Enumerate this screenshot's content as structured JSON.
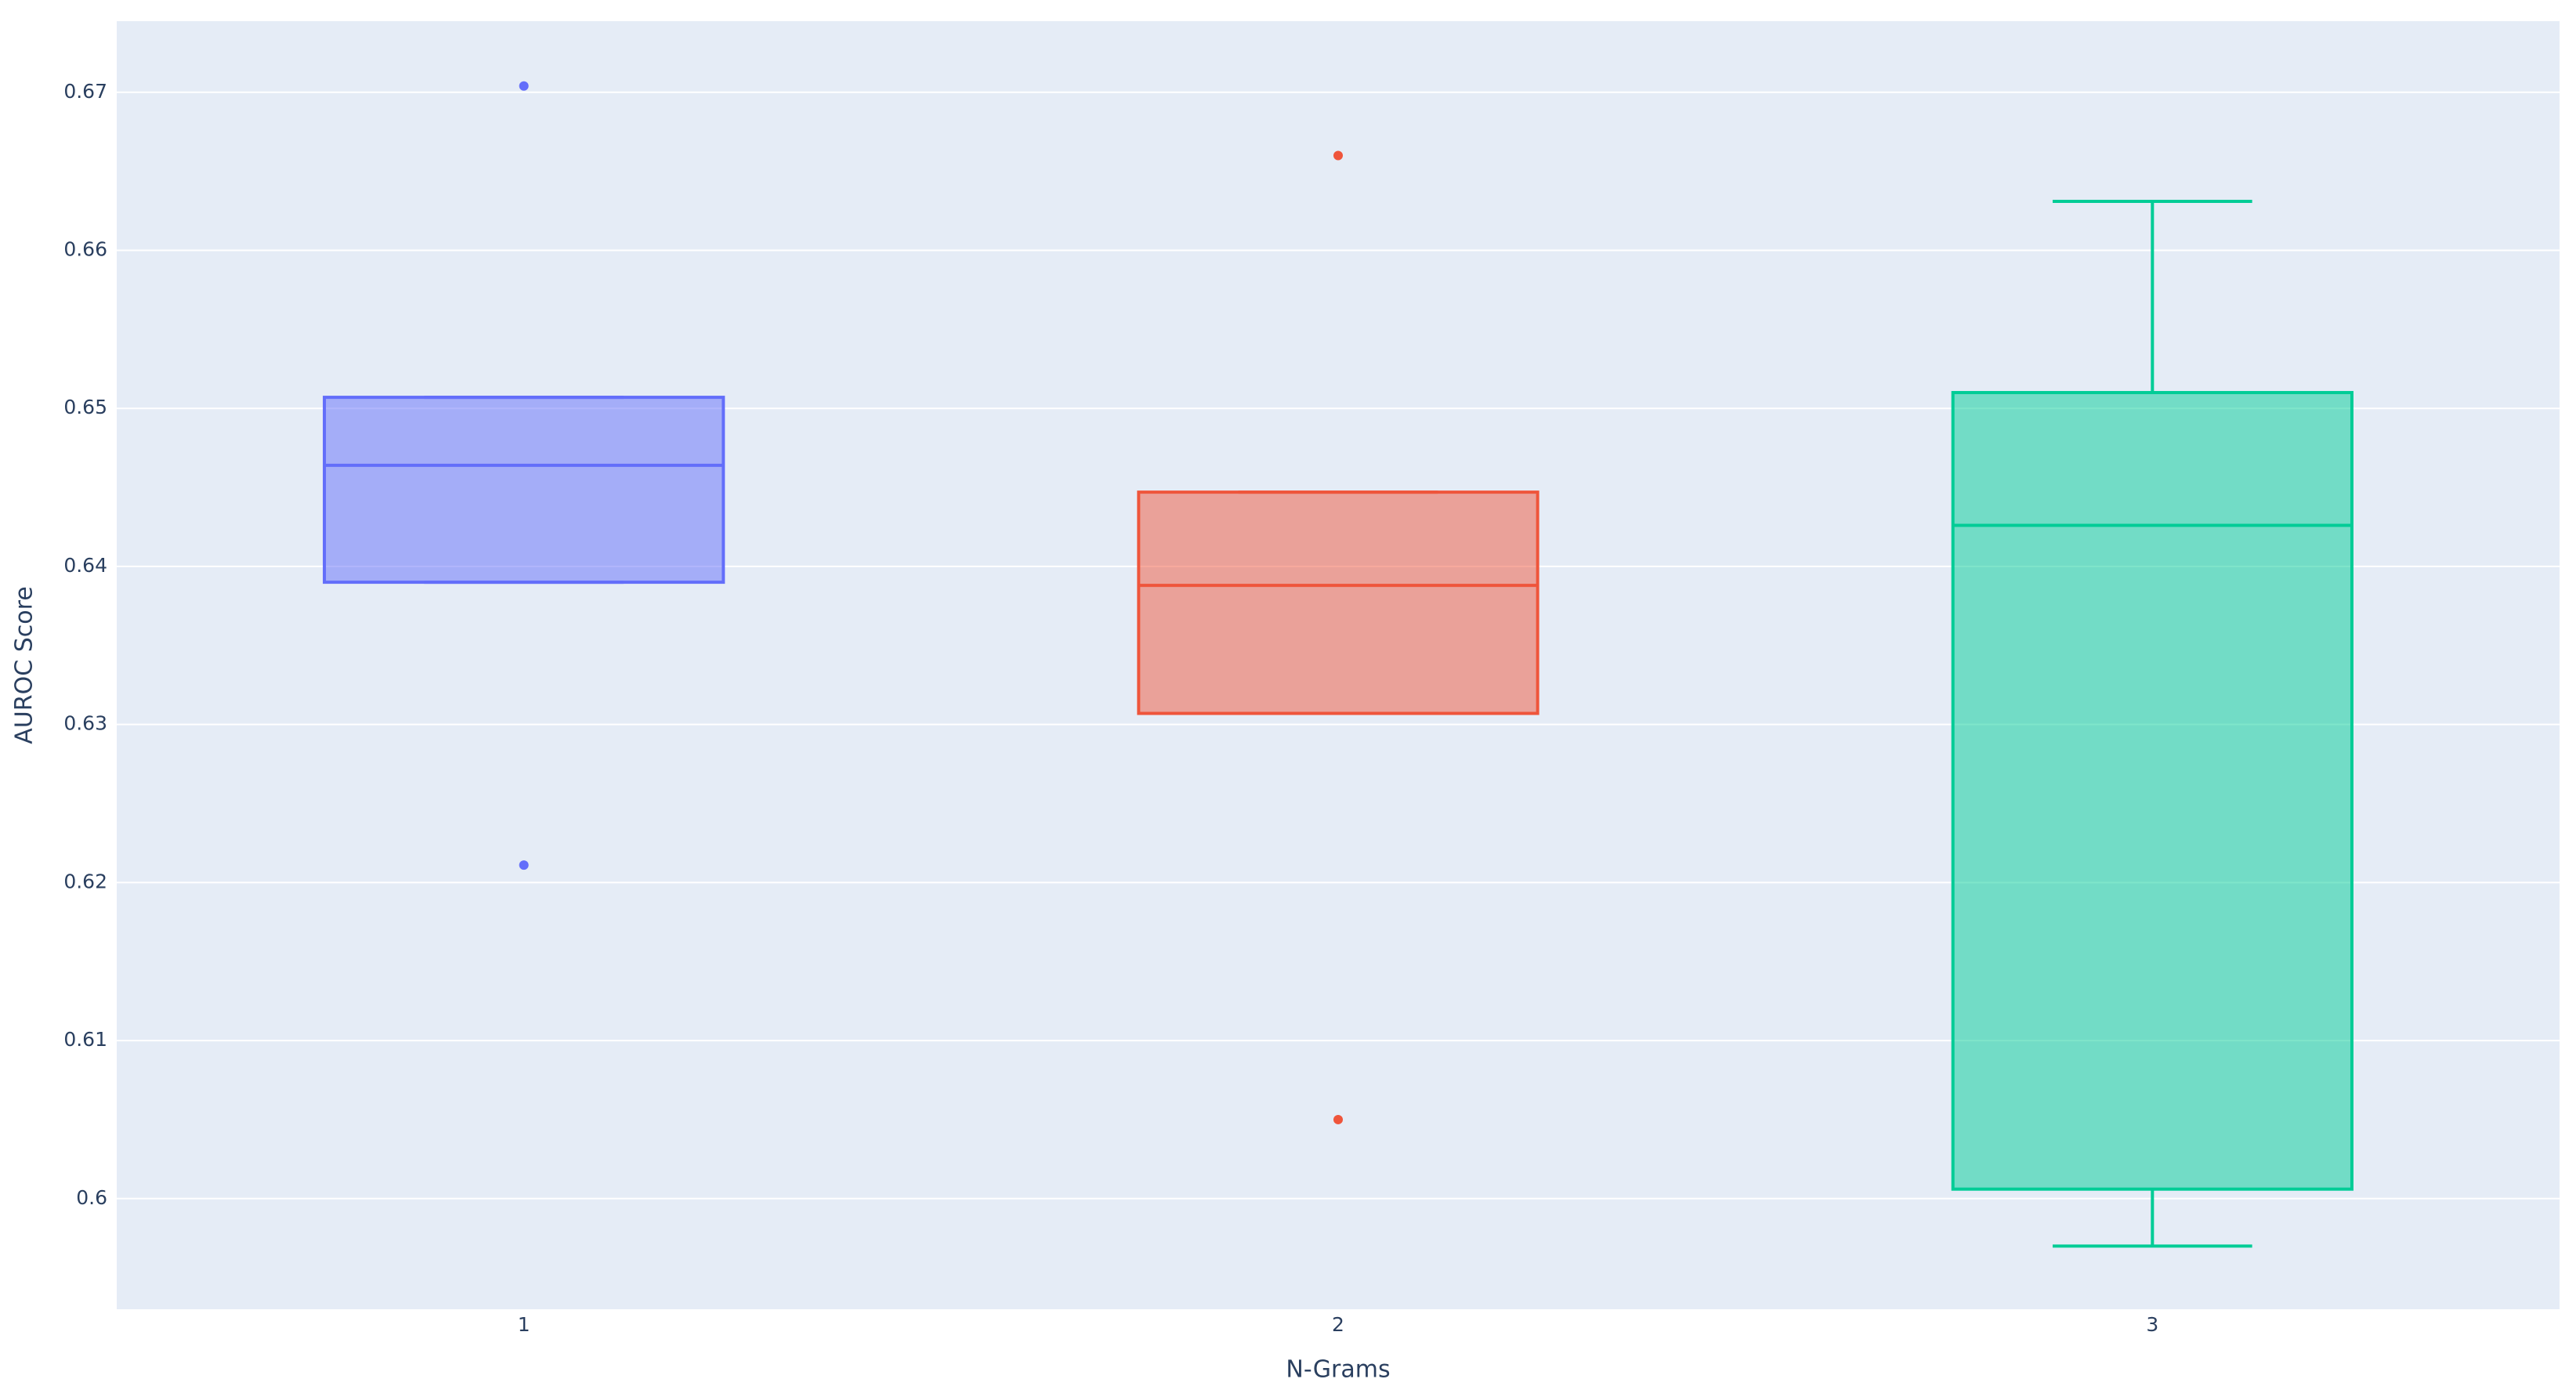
{
  "chart_data": {
    "type": "box",
    "xlabel": "N-Grams",
    "ylabel": "AUROC Score",
    "categories": [
      "1",
      "2",
      "3"
    ],
    "boxes": [
      {
        "color": "#636efa",
        "lower_whisker": 0.639,
        "q1": 0.639,
        "median": 0.6464,
        "q3": 0.6507,
        "upper_whisker": 0.6507,
        "outliers": [
          0.6704,
          0.6211
        ]
      },
      {
        "color": "#ef553b",
        "lower_whisker": 0.6307,
        "q1": 0.6307,
        "median": 0.6388,
        "q3": 0.6447,
        "upper_whisker": 0.6447,
        "outliers": [
          0.666,
          0.605
        ]
      },
      {
        "color": "#00cc96",
        "lower_whisker": 0.597,
        "q1": 0.6006,
        "median": 0.6426,
        "q3": 0.651,
        "upper_whisker": 0.6631,
        "outliers": []
      }
    ],
    "ylim": [
      0.593,
      0.6745
    ],
    "yticks": [
      0.6,
      0.61,
      0.62,
      0.63,
      0.64,
      0.65,
      0.66,
      0.67
    ],
    "grid": true
  }
}
